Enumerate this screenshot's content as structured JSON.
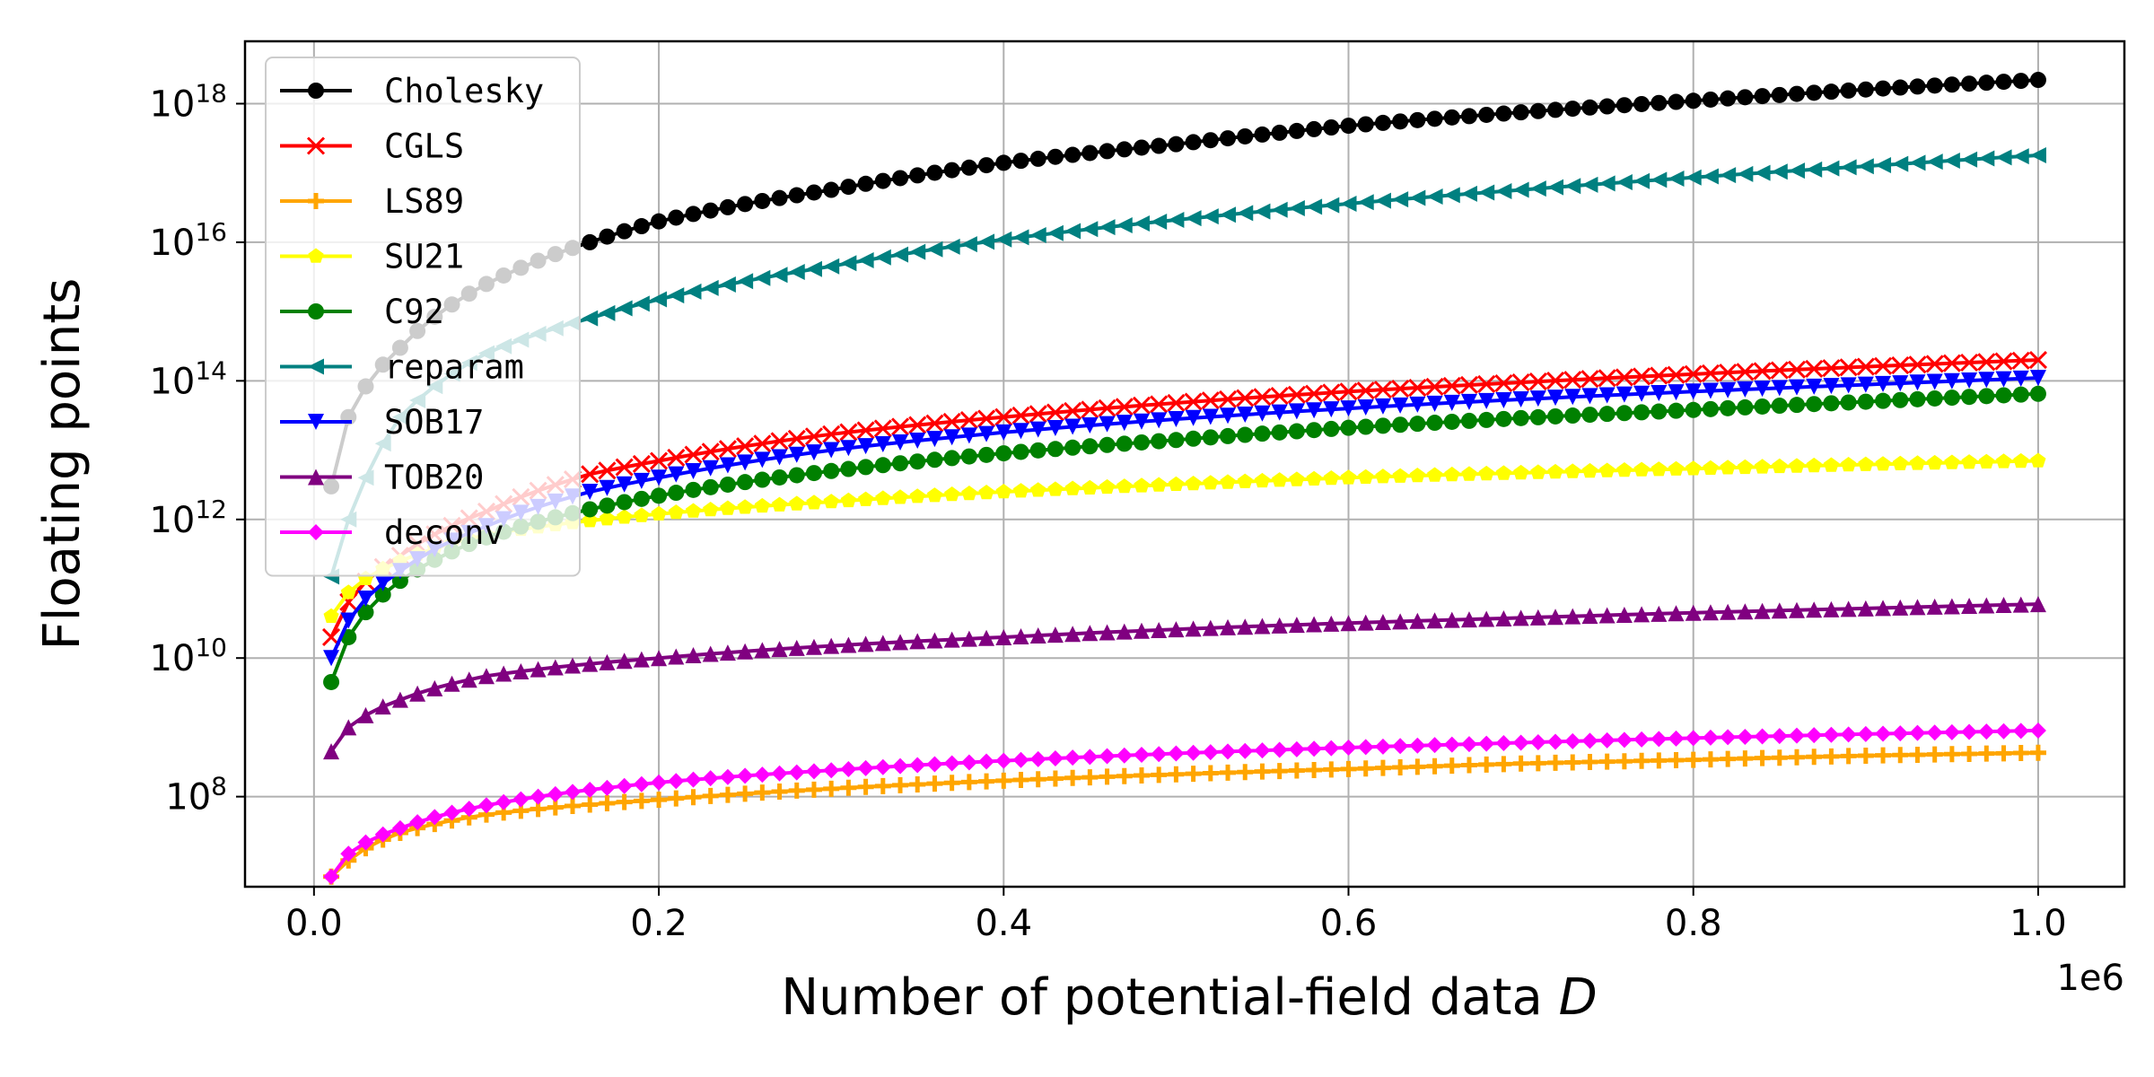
{
  "chart_data": {
    "type": "line",
    "xlabel": "Number of potential-field data",
    "xlabel_symbol": "D",
    "ylabel": "Floating points",
    "x_multiplier_label": "1e6",
    "x_scale": "linear",
    "y_scale": "log",
    "xlim": [
      -40000,
      1050000
    ],
    "ylim_exponent": [
      6.7,
      18.9
    ],
    "x_ticks": [
      0,
      200000,
      400000,
      600000,
      800000,
      1000000
    ],
    "x_tick_labels": [
      "0.0",
      "0.2",
      "0.4",
      "0.6",
      "0.8",
      "1.0"
    ],
    "y_ticks_exponent": [
      8,
      10,
      12,
      14,
      16,
      18
    ],
    "y_tick_base": "10",
    "grid": true,
    "legend_position": "upper-left",
    "x_range": {
      "start": 10000,
      "end": 1000000,
      "count": 100
    },
    "series": [
      {
        "name": "Cholesky",
        "color": "#000000",
        "marker": "circle",
        "points": [
          [
            10000,
            3000000000000.0
          ],
          [
            20000,
            30000000000000.0
          ],
          [
            50000,
            300000000000000.0
          ],
          [
            100000,
            2500000000000000.0
          ],
          [
            160000,
            1e+16
          ],
          [
            200000,
            2e+16
          ],
          [
            300000,
            5.7e+16
          ],
          [
            400000,
            1.4e+17
          ],
          [
            500000,
            2.6e+17
          ],
          [
            600000,
            4.8e+17
          ],
          [
            700000,
            7.5e+17
          ],
          [
            800000,
            1.1e+18
          ],
          [
            900000,
            1.6e+18
          ],
          [
            1000000,
            2.2e+18
          ]
        ]
      },
      {
        "name": "CGLS",
        "color": "#ff0000",
        "marker": "x",
        "points": [
          [
            10000,
            20000000000.0
          ],
          [
            50000,
            300000000000.0
          ],
          [
            100000,
            1300000000000.0
          ],
          [
            160000,
            4500000000000.0
          ],
          [
            200000,
            7000000000000.0
          ],
          [
            300000,
            17000000000000.0
          ],
          [
            400000,
            30000000000000.0
          ],
          [
            500000,
            48000000000000.0
          ],
          [
            600000,
            70000000000000.0
          ],
          [
            700000,
            95000000000000.0
          ],
          [
            800000,
            125000000000000.0
          ],
          [
            900000,
            160000000000000.0
          ],
          [
            1000000,
            200000000000000.0
          ]
        ]
      },
      {
        "name": "LS89",
        "color": "#ffa500",
        "marker": "plus",
        "points": [
          [
            10000,
            7000000.0
          ],
          [
            20000,
            12000000.0
          ],
          [
            50000,
            30000000.0
          ],
          [
            100000,
            55000000.0
          ],
          [
            200000,
            90000000.0
          ],
          [
            300000,
            130000000.0
          ],
          [
            400000,
            170000000.0
          ],
          [
            500000,
            210000000.0
          ],
          [
            600000,
            250000000.0
          ],
          [
            700000,
            300000000.0
          ],
          [
            800000,
            340000000.0
          ],
          [
            900000,
            390000000.0
          ],
          [
            1000000,
            430000000.0
          ]
        ]
      },
      {
        "name": "SU21",
        "color": "#ffff00",
        "marker": "pentagon",
        "points": [
          [
            10000,
            40000000000.0
          ],
          [
            50000,
            250000000000.0
          ],
          [
            100000,
            600000000000.0
          ],
          [
            200000,
            1200000000000.0
          ],
          [
            300000,
            1800000000000.0
          ],
          [
            400000,
            2500000000000.0
          ],
          [
            500000,
            3200000000000.0
          ],
          [
            600000,
            4000000000000.0
          ],
          [
            700000,
            4700000000000.0
          ],
          [
            800000,
            5400000000000.0
          ],
          [
            900000,
            6200000000000.0
          ],
          [
            1000000,
            7000000000000.0
          ]
        ]
      },
      {
        "name": "C92",
        "color": "#008000",
        "marker": "hexagon",
        "points": [
          [
            10000,
            4500000000.0
          ],
          [
            20000,
            20000000000.0
          ],
          [
            50000,
            130000000000.0
          ],
          [
            100000,
            550000000000.0
          ],
          [
            160000,
            1400000000000.0
          ],
          [
            200000,
            2200000000000.0
          ],
          [
            300000,
            5000000000000.0
          ],
          [
            400000,
            9000000000000.0
          ],
          [
            500000,
            14000000000000.0
          ],
          [
            600000,
            21000000000000.0
          ],
          [
            700000,
            29000000000000.0
          ],
          [
            800000,
            38000000000000.0
          ],
          [
            900000,
            50000000000000.0
          ],
          [
            1000000,
            65000000000000.0
          ]
        ]
      },
      {
        "name": "reparam",
        "color": "#008080",
        "marker": "triangle-left",
        "points": [
          [
            10000,
            150000000000.0
          ],
          [
            20000,
            1000000000000.0
          ],
          [
            30000,
            4000000000000.0
          ],
          [
            50000,
            30000000000000.0
          ],
          [
            100000,
            250000000000000.0
          ],
          [
            160000,
            800000000000000.0
          ],
          [
            200000,
            1500000000000000.0
          ],
          [
            300000,
            4500000000000000.0
          ],
          [
            400000,
            1.1e+16
          ],
          [
            500000,
            2.1e+16
          ],
          [
            600000,
            3.6e+16
          ],
          [
            700000,
            5.7e+16
          ],
          [
            800000,
            8.6e+16
          ],
          [
            900000,
            1.25e+17
          ],
          [
            1000000,
            1.8e+17
          ]
        ]
      },
      {
        "name": "SOB17",
        "color": "#0000ff",
        "marker": "triangle-down",
        "points": [
          [
            10000,
            10000000000.0
          ],
          [
            50000,
            180000000000.0
          ],
          [
            100000,
            800000000000.0
          ],
          [
            160000,
            2500000000000.0
          ],
          [
            200000,
            4000000000000.0
          ],
          [
            300000,
            10000000000000.0
          ],
          [
            400000,
            18000000000000.0
          ],
          [
            500000,
            28000000000000.0
          ],
          [
            600000,
            40000000000000.0
          ],
          [
            700000,
            54000000000000.0
          ],
          [
            800000,
            70000000000000.0
          ],
          [
            900000,
            88000000000000.0
          ],
          [
            1000000,
            110000000000000.0
          ]
        ]
      },
      {
        "name": "TOB20",
        "color": "#800080",
        "marker": "triangle-up",
        "points": [
          [
            10000,
            450000000.0
          ],
          [
            20000,
            1000000000.0
          ],
          [
            50000,
            2500000000.0
          ],
          [
            100000,
            5500000000.0
          ],
          [
            200000,
            10000000000.0
          ],
          [
            300000,
            15000000000.0
          ],
          [
            400000,
            20000000000.0
          ],
          [
            500000,
            26000000000.0
          ],
          [
            600000,
            32000000000.0
          ],
          [
            700000,
            38000000000.0
          ],
          [
            800000,
            45000000000.0
          ],
          [
            900000,
            52000000000.0
          ],
          [
            1000000,
            60000000000.0
          ]
        ]
      },
      {
        "name": "deconv",
        "color": "#ff00ff",
        "marker": "diamond",
        "points": [
          [
            10000,
            7000000.0
          ],
          [
            20000,
            15000000.0
          ],
          [
            50000,
            35000000.0
          ],
          [
            100000,
            75000000.0
          ],
          [
            200000,
            160000000.0
          ],
          [
            300000,
            240000000.0
          ],
          [
            400000,
            330000000.0
          ],
          [
            500000,
            420000000.0
          ],
          [
            600000,
            510000000.0
          ],
          [
            700000,
            600000000.0
          ],
          [
            800000,
            700000000.0
          ],
          [
            900000,
            800000000.0
          ],
          [
            1000000,
            900000000.0
          ]
        ]
      }
    ]
  }
}
